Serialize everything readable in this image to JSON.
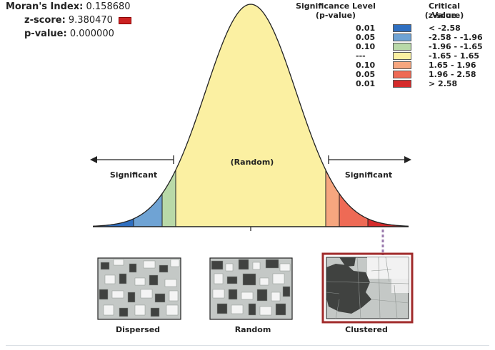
{
  "stats": {
    "moran_label": "Moran's Index:",
    "moran_value": "0.158680",
    "z_label": "z-score:",
    "z_value": "9.380470",
    "p_label": "p-value:",
    "p_value": "0.000000"
  },
  "legend": {
    "sig_header_1": "Significance Level",
    "sig_header_2": "(p-value)",
    "crit_header_1": "Critical Value",
    "crit_header_2": "(z-score)",
    "rows": [
      {
        "p": "0.01",
        "z": "< -2.58",
        "color": "#2f6fc0"
      },
      {
        "p": "0.05",
        "z": "-2.58 - -1.96",
        "color": "#6fa3d4"
      },
      {
        "p": "0.10",
        "z": "-1.96 - -1.65",
        "color": "#b9d9a8"
      },
      {
        "p": "---",
        "z": "-1.65 - 1.65",
        "color": "#fbf0a2"
      },
      {
        "p": "0.10",
        "z": "1.65 - 1.96",
        "color": "#f6a67f"
      },
      {
        "p": "0.05",
        "z": "1.96 - 2.58",
        "color": "#ee6a55"
      },
      {
        "p": "0.01",
        "z": "> 2.58",
        "color": "#d42a2a"
      }
    ]
  },
  "curve": {
    "random_label": "(Random)",
    "sig_left": "Significant",
    "sig_right": "Significant"
  },
  "maps": {
    "dispersed": "Dispersed",
    "random": "Random",
    "clustered": "Clustered"
  }
}
